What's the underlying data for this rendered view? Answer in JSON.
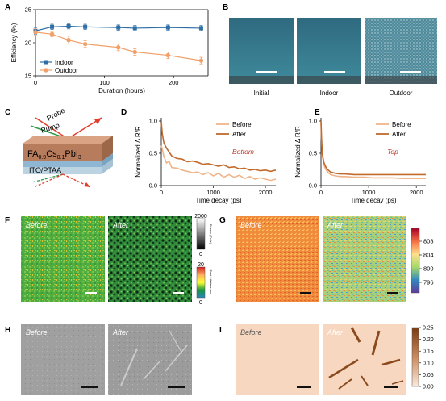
{
  "colors": {
    "indoor": "#2f6fa6",
    "outdoor": "#f0a068",
    "before": "#f0b48a",
    "after": "#c16a2c",
    "label_red": "#c0392b",
    "pump": "#2e9a4a",
    "probe": "#e23b2a",
    "film": "#b77c5c",
    "itopta": "#8fb7d3",
    "glass": "#bcd3e2"
  },
  "panel_labels": [
    "A",
    "B",
    "C",
    "D",
    "E",
    "F",
    "G",
    "H",
    "I"
  ],
  "panel_b": {
    "captions": [
      "Initial",
      "Indoor",
      "Outdoor"
    ]
  },
  "panel_c": {
    "probe_label": "Probe",
    "pump_label": "Pump",
    "film_label_parts": [
      "FA",
      "0.9",
      "Cs",
      "0.1",
      "PbI",
      "3"
    ],
    "substrate_label": "ITO/PTAA"
  },
  "panel_f": {
    "before_label": "Before",
    "after_label": "After",
    "cbar1_ticks": [
      "2000",
      "0"
    ],
    "cbar1_title": "Events (Cnts)",
    "cbar2_ticks": [
      "20",
      "0"
    ],
    "cbar2_title": "Fast Lifetime (ns)"
  },
  "panel_g": {
    "before_label": "Before",
    "after_label": "After",
    "cbar_ticks": [
      "808",
      "804",
      "800",
      "796"
    ]
  },
  "panel_h": {
    "before_label": "Before",
    "after_label": "After"
  },
  "panel_i": {
    "before_label": "Before",
    "after_label": "After",
    "cbar_ticks": [
      "0.25",
      "0.20",
      "0.15",
      "0.10",
      "0.05",
      "0.00"
    ]
  },
  "chart_data": [
    {
      "panel": "A",
      "type": "line",
      "xlabel": "Duration (hours)",
      "ylabel": "Efficiency (%)",
      "xlim": [
        0,
        250
      ],
      "ylim": [
        15,
        25
      ],
      "xticks": [
        0,
        100,
        200
      ],
      "yticks": [
        15,
        20,
        25
      ],
      "legend_position": "bottom-left",
      "series": [
        {
          "name": "Indoor",
          "marker": "square",
          "x": [
            0,
            24,
            48,
            72,
            120,
            144,
            192,
            240
          ],
          "y": [
            21.8,
            22.4,
            22.5,
            22.4,
            22.3,
            22.2,
            22.3,
            22.2
          ],
          "err": [
            0.5,
            0.4,
            0.4,
            0.4,
            0.4,
            0.4,
            0.4,
            0.4
          ]
        },
        {
          "name": "Outdoor",
          "marker": "circle",
          "x": [
            0,
            24,
            48,
            72,
            120,
            144,
            192,
            240
          ],
          "y": [
            21.6,
            21.3,
            20.4,
            19.8,
            19.3,
            18.6,
            18.1,
            17.3
          ],
          "err": [
            0.5,
            0.4,
            0.6,
            0.5,
            0.5,
            0.5,
            0.5,
            0.5
          ]
        }
      ]
    },
    {
      "panel": "D",
      "type": "line",
      "xlabel": "Time decay (ps)",
      "ylabel": "Normalized Δ R/R",
      "xlim": [
        0,
        2200
      ],
      "ylim": [
        0,
        1.05
      ],
      "xticks": [
        0,
        1000,
        2000
      ],
      "yticks": [
        0.0,
        0.5,
        1.0
      ],
      "annotation": "Bottom",
      "legend_position": "top-right",
      "series": [
        {
          "name": "Before",
          "x": [
            0,
            20,
            50,
            100,
            150,
            200,
            300,
            400,
            500,
            600,
            700,
            800,
            900,
            1000,
            1100,
            1200,
            1300,
            1400,
            1500,
            1600,
            1700,
            1800,
            1900,
            2000,
            2100,
            2200
          ],
          "y": [
            0.62,
            0.56,
            0.45,
            0.35,
            0.38,
            0.28,
            0.27,
            0.24,
            0.22,
            0.2,
            0.21,
            0.17,
            0.2,
            0.15,
            0.19,
            0.13,
            0.17,
            0.13,
            0.16,
            0.11,
            0.14,
            0.1,
            0.12,
            0.1,
            0.08,
            0.1
          ]
        },
        {
          "name": "After",
          "x": [
            0,
            20,
            50,
            100,
            150,
            200,
            300,
            400,
            500,
            600,
            700,
            800,
            900,
            1000,
            1100,
            1200,
            1300,
            1400,
            1500,
            1600,
            1700,
            1800,
            1900,
            2000,
            2100,
            2200
          ],
          "y": [
            0.98,
            0.8,
            0.66,
            0.58,
            0.52,
            0.46,
            0.42,
            0.41,
            0.37,
            0.38,
            0.36,
            0.33,
            0.34,
            0.32,
            0.3,
            0.32,
            0.28,
            0.29,
            0.26,
            0.27,
            0.24,
            0.25,
            0.23,
            0.24,
            0.22,
            0.24
          ]
        }
      ]
    },
    {
      "panel": "E",
      "type": "line",
      "xlabel": "Time decay (ps)",
      "ylabel": "Normalized Δ R/R",
      "xlim": [
        0,
        2200
      ],
      "ylim": [
        0,
        1.05
      ],
      "xticks": [
        0,
        1000,
        2000
      ],
      "yticks": [
        0.0,
        0.5,
        1.0
      ],
      "annotation": "Top",
      "legend_position": "top-right",
      "series": [
        {
          "name": "Before",
          "x": [
            0,
            10,
            30,
            60,
            100,
            150,
            200,
            300,
            400,
            500,
            700,
            900,
            1100,
            1300,
            1500,
            1700,
            1900,
            2100,
            2200
          ],
          "y": [
            1.0,
            0.72,
            0.45,
            0.32,
            0.25,
            0.2,
            0.17,
            0.15,
            0.14,
            0.14,
            0.13,
            0.13,
            0.12,
            0.12,
            0.12,
            0.11,
            0.11,
            0.11,
            0.11
          ]
        },
        {
          "name": "After",
          "x": [
            0,
            10,
            30,
            60,
            100,
            150,
            200,
            300,
            400,
            500,
            700,
            900,
            1100,
            1300,
            1500,
            1700,
            1900,
            2100,
            2200
          ],
          "y": [
            1.0,
            0.75,
            0.48,
            0.36,
            0.29,
            0.24,
            0.21,
            0.19,
            0.18,
            0.18,
            0.17,
            0.17,
            0.17,
            0.17,
            0.17,
            0.17,
            0.17,
            0.17,
            0.17
          ]
        }
      ]
    }
  ]
}
